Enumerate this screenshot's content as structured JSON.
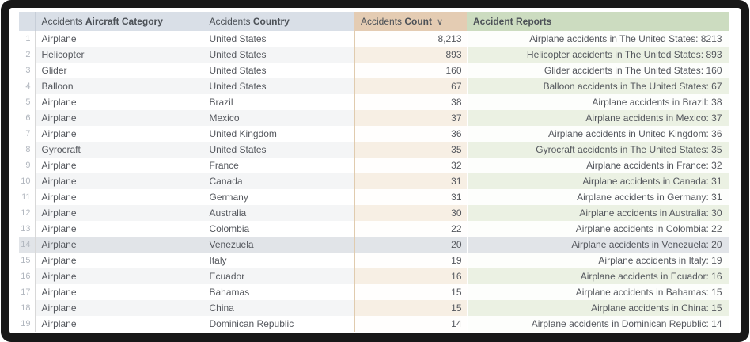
{
  "table": {
    "sort_icon_glyph": "∨",
    "headers": [
      {
        "prefix": "",
        "name": ""
      },
      {
        "prefix": "Accidents ",
        "name": "Aircraft Category"
      },
      {
        "prefix": "Accidents ",
        "name": "Country"
      },
      {
        "prefix": "Accidents ",
        "name": "Count",
        "sort_icon": "chevron-down-icon"
      },
      {
        "prefix": "",
        "name": "Accident Reports"
      }
    ],
    "rows": [
      {
        "num": "1",
        "category": "Airplane",
        "country": "United States",
        "count": "8,213",
        "report": "Airplane accidents in The United States: 8213",
        "highlighted": false
      },
      {
        "num": "2",
        "category": "Helicopter",
        "country": "United States",
        "count": "893",
        "report": "Helicopter accidents in The United States: 893",
        "highlighted": false
      },
      {
        "num": "3",
        "category": "Glider",
        "country": "United States",
        "count": "160",
        "report": "Glider accidents in The United States: 160",
        "highlighted": false
      },
      {
        "num": "4",
        "category": "Balloon",
        "country": "United States",
        "count": "67",
        "report": "Balloon accidents in The United States: 67",
        "highlighted": false
      },
      {
        "num": "5",
        "category": "Airplane",
        "country": "Brazil",
        "count": "38",
        "report": "Airplane accidents in Brazil: 38",
        "highlighted": false
      },
      {
        "num": "6",
        "category": "Airplane",
        "country": "Mexico",
        "count": "37",
        "report": "Airplane accidents in Mexico: 37",
        "highlighted": false
      },
      {
        "num": "7",
        "category": "Airplane",
        "country": "United Kingdom",
        "count": "36",
        "report": "Airplane accidents in United Kingdom: 36",
        "highlighted": false
      },
      {
        "num": "8",
        "category": "Gyrocraft",
        "country": "United States",
        "count": "35",
        "report": "Gyrocraft accidents in The United States: 35",
        "highlighted": false
      },
      {
        "num": "9",
        "category": "Airplane",
        "country": "France",
        "count": "32",
        "report": "Airplane accidents in France: 32",
        "highlighted": false
      },
      {
        "num": "10",
        "category": "Airplane",
        "country": "Canada",
        "count": "31",
        "report": "Airplane accidents in Canada: 31",
        "highlighted": false
      },
      {
        "num": "11",
        "category": "Airplane",
        "country": "Germany",
        "count": "31",
        "report": "Airplane accidents in Germany: 31",
        "highlighted": false
      },
      {
        "num": "12",
        "category": "Airplane",
        "country": "Australia",
        "count": "30",
        "report": "Airplane accidents in Australia: 30",
        "highlighted": false
      },
      {
        "num": "13",
        "category": "Airplane",
        "country": "Colombia",
        "count": "22",
        "report": "Airplane accidents in Colombia: 22",
        "highlighted": false
      },
      {
        "num": "14",
        "category": "Airplane",
        "country": "Venezuela",
        "count": "20",
        "report": "Airplane accidents in Venezuela: 20",
        "highlighted": true
      },
      {
        "num": "15",
        "category": "Airplane",
        "country": "Italy",
        "count": "19",
        "report": "Airplane accidents in Italy: 19",
        "highlighted": false
      },
      {
        "num": "16",
        "category": "Airplane",
        "country": "Ecuador",
        "count": "16",
        "report": "Airplane accidents in Ecuador: 16",
        "highlighted": false
      },
      {
        "num": "17",
        "category": "Airplane",
        "country": "Bahamas",
        "count": "15",
        "report": "Airplane accidents in Bahamas: 15",
        "highlighted": false
      },
      {
        "num": "18",
        "category": "Airplane",
        "country": "China",
        "count": "15",
        "report": "Airplane accidents in China: 15",
        "highlighted": false
      },
      {
        "num": "19",
        "category": "Airplane",
        "country": "Dominican Republic",
        "count": "14",
        "report": "Airplane accidents in Dominican Republic: 14",
        "highlighted": false
      }
    ]
  },
  "colors": {
    "header_neutral": "#d9dfe7",
    "header_count": "#e4ccb3",
    "header_report": "#ccdcc0",
    "stripe_neutral": "#f4f5f6",
    "stripe_count": "#f7efe4",
    "stripe_report": "#ebf1e3",
    "highlight_row": "#e1e4e8",
    "frame": "#181818",
    "body_text": "#55585e"
  }
}
